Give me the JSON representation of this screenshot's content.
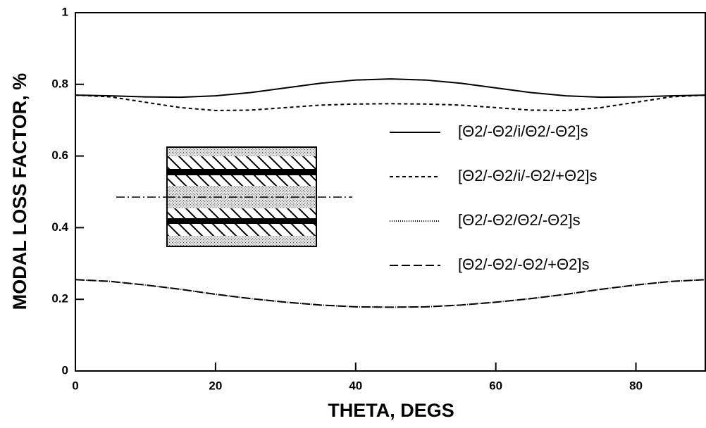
{
  "chart_data": {
    "type": "line",
    "x_label": "THETA, DEGS",
    "y_label": "MODAL LOSS FACTOR, %",
    "x": [
      0,
      5,
      10,
      15,
      20,
      25,
      30,
      35,
      40,
      45,
      50,
      55,
      60,
      65,
      70,
      75,
      80,
      85,
      90
    ],
    "xlim": [
      0,
      90
    ],
    "xticks": [
      0,
      20,
      40,
      60,
      80
    ],
    "ylim": [
      0,
      1
    ],
    "yticks": [
      0,
      0.2,
      0.4,
      0.6,
      0.8,
      1
    ],
    "series": [
      {
        "name": "[Θ2/-Θ2/i/Θ2/-Θ2]s",
        "color": "#000000",
        "dash": "none",
        "values": [
          0.77,
          0.768,
          0.765,
          0.764,
          0.768,
          0.777,
          0.79,
          0.803,
          0.812,
          0.815,
          0.812,
          0.803,
          0.79,
          0.777,
          0.768,
          0.764,
          0.765,
          0.768,
          0.77
        ]
      },
      {
        "name": "[Θ2/-Θ2/i/-Θ2/+Θ2]s",
        "color": "#000000",
        "dash": "5 4",
        "values": [
          0.77,
          0.765,
          0.75,
          0.735,
          0.727,
          0.728,
          0.735,
          0.742,
          0.745,
          0.746,
          0.745,
          0.742,
          0.735,
          0.728,
          0.727,
          0.735,
          0.75,
          0.765,
          0.77
        ]
      },
      {
        "name": "[Θ2/-Θ2/Θ2/-Θ2]s",
        "color": "#000000",
        "dash": "1 2",
        "values": [
          0.255,
          0.25,
          0.24,
          0.228,
          0.214,
          0.202,
          0.192,
          0.184,
          0.179,
          0.178,
          0.179,
          0.184,
          0.192,
          0.202,
          0.214,
          0.228,
          0.24,
          0.25,
          0.255
        ]
      },
      {
        "name": "[Θ2/-Θ2/-Θ2/+Θ2]s",
        "color": "#000000",
        "dash": "12 5",
        "values": [
          0.255,
          0.25,
          0.24,
          0.228,
          0.214,
          0.202,
          0.192,
          0.184,
          0.179,
          0.178,
          0.179,
          0.184,
          0.192,
          0.202,
          0.214,
          0.228,
          0.24,
          0.25,
          0.255
        ]
      }
    ]
  }
}
